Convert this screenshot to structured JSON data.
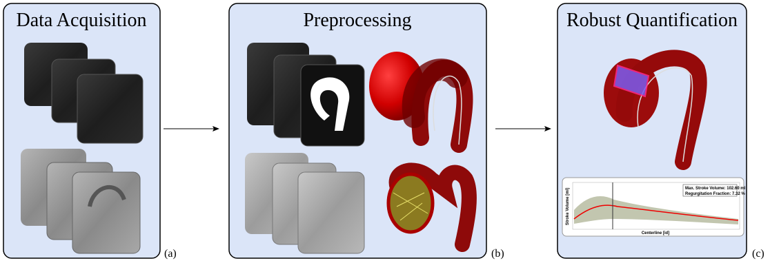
{
  "panels": [
    {
      "title": "Data Acquisition",
      "label": "(a)"
    },
    {
      "title": "Preprocessing",
      "label": "(b)"
    },
    {
      "title": "Robust Quantification",
      "label": "(c)",
      "plot": {
        "x_label": "Centerline [id]",
        "y_label": "Stroke Volume [ml]",
        "legend": [
          "Max. Stroke Volume: 102.60 ml",
          "Regurgitation Fraction: 7.32 %"
        ]
      }
    }
  ]
}
